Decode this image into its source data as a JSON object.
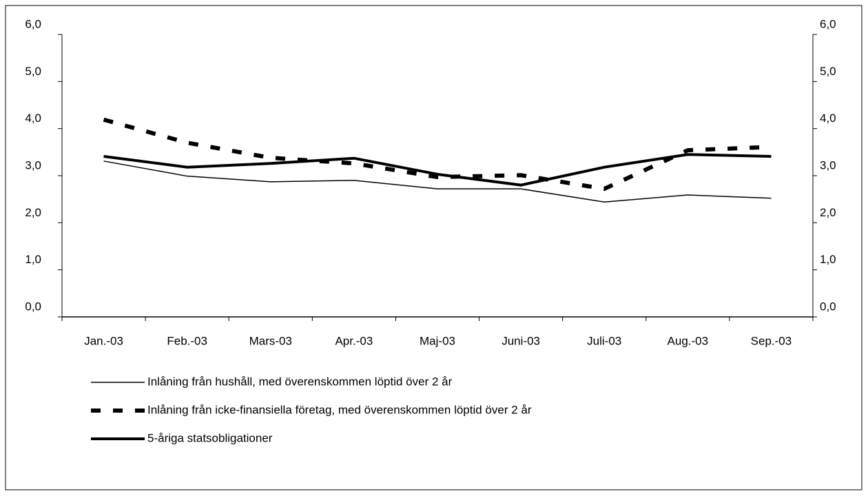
{
  "chart_data": {
    "type": "line",
    "categories": [
      "Jan.-03",
      "Feb.-03",
      "Mars-03",
      "Apr.-03",
      "Maj-03",
      "Juni-03",
      "Juli-03",
      "Aug.-03",
      "Sep.-03"
    ],
    "series": [
      {
        "name": "Inlåning från hushåll, med överenskommen löptid över 2 år",
        "color": "#000000",
        "style": "solid",
        "width": 1.5,
        "values": [
          3.31,
          2.99,
          2.87,
          2.9,
          2.72,
          2.72,
          2.44,
          2.59,
          2.52
        ]
      },
      {
        "name": "Inlåning från icke-finansiella företag, med överenskommen löptid över 2 år",
        "color": "#000000",
        "style": "dashed",
        "width": 6,
        "values": [
          4.19,
          3.7,
          3.38,
          3.26,
          2.97,
          3.01,
          2.72,
          3.54,
          3.61
        ]
      },
      {
        "name": "5-åriga statsobligationer",
        "color": "#000000",
        "style": "solid",
        "width": 4,
        "values": [
          3.41,
          3.18,
          3.26,
          3.37,
          3.03,
          2.8,
          3.18,
          3.45,
          3.41
        ]
      }
    ],
    "ylim": [
      0,
      6
    ],
    "yticks": [
      {
        "value": 0,
        "label": "0,0"
      },
      {
        "value": 1,
        "label": "1,0"
      },
      {
        "value": 2,
        "label": "2,0"
      },
      {
        "value": 3,
        "label": "3,0"
      },
      {
        "value": 4,
        "label": "4,0"
      },
      {
        "value": 5,
        "label": "5,0"
      },
      {
        "value": 6,
        "label": "6,0"
      }
    ],
    "y2lim": [
      0,
      6
    ],
    "y2ticks": [
      {
        "value": 0,
        "label": "0,0"
      },
      {
        "value": 1,
        "label": "1,0"
      },
      {
        "value": 2,
        "label": "2,0"
      },
      {
        "value": 3,
        "label": "3,0"
      },
      {
        "value": 4,
        "label": "4,0"
      },
      {
        "value": 5,
        "label": "5,0"
      },
      {
        "value": 6,
        "label": "6,0"
      }
    ],
    "grid": false
  }
}
